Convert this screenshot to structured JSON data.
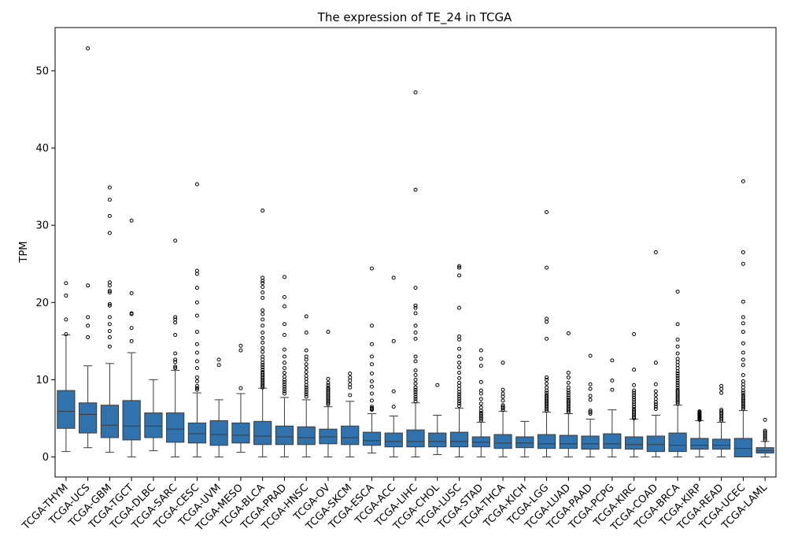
{
  "chart_data": {
    "type": "box",
    "title": "The expression of TE_24 in TCGA",
    "xlabel": "",
    "ylabel": "TPM",
    "ylim": [
      -2.6,
      55.6
    ],
    "yticks": [
      0,
      10,
      20,
      30,
      40,
      50
    ],
    "grid": false,
    "legend": "none",
    "box_color": "#2f72ad",
    "categories": [
      "TCGA-THYM",
      "TCGA-UCS",
      "TCGA-GBM",
      "TCGA-TGCT",
      "TCGA-DLBC",
      "TCGA-SARC",
      "TCGA-CESC",
      "TCGA-UVM",
      "TCGA-MESO",
      "TCGA-BLCA",
      "TCGA-PRAD",
      "TCGA-HNSC",
      "TCGA-OV",
      "TCGA-SKCM",
      "TCGA-ESCA",
      "TCGA-ACC",
      "TCGA-LIHC",
      "TCGA-CHOL",
      "TCGA-LUSC",
      "TCGA-STAD",
      "TCGA-THCA",
      "TCGA-KICH",
      "TCGA-LGG",
      "TCGA-LUAD",
      "TCGA-PAAD",
      "TCGA-PCPG",
      "TCGA-KIRC",
      "TCGA-COAD",
      "TCGA-BRCA",
      "TCGA-KIRP",
      "TCGA-READ",
      "TCGA-UCEC",
      "TCGA-LAML"
    ],
    "boxes": [
      {
        "whislo": 0.7,
        "q1": 3.7,
        "med": 5.9,
        "q3": 8.6,
        "whishi": 15.8,
        "fliers": [
          15.9,
          17.8,
          20.9,
          22.5
        ]
      },
      {
        "whislo": 1.2,
        "q1": 3.1,
        "med": 5.5,
        "q3": 7.0,
        "whishi": 11.8,
        "fliers": [
          15.5,
          17.0,
          18.1,
          22.2,
          52.9
        ]
      },
      {
        "whislo": 0.6,
        "q1": 2.5,
        "med": 4.1,
        "q3": 6.7,
        "whishi": 12.1,
        "fliers": [
          14.3,
          15.5,
          16.3,
          17.2,
          18.1,
          19.6,
          19.8,
          21.3,
          21.5,
          22.2,
          22.6,
          29.0,
          31.2,
          33.3,
          34.9
        ]
      },
      {
        "whislo": 0.0,
        "q1": 2.2,
        "med": 4.0,
        "q3": 7.3,
        "whishi": 13.5,
        "fliers": [
          15.0,
          16.7,
          18.5,
          18.6,
          21.2,
          30.6
        ]
      },
      {
        "whislo": 0.8,
        "q1": 2.5,
        "med": 4.0,
        "q3": 5.7,
        "whishi": 10.0,
        "fliers": []
      },
      {
        "whislo": 0.0,
        "q1": 1.9,
        "med": 3.6,
        "q3": 5.7,
        "whishi": 11.2,
        "fliers": [
          11.5,
          11.7,
          12.3,
          12.6,
          13.4,
          15.8,
          17.4,
          17.8,
          18.1,
          28.0
        ]
      },
      {
        "whislo": 0.0,
        "q1": 1.8,
        "med": 3.0,
        "q3": 4.4,
        "whishi": 8.3,
        "fliers": [
          8.7,
          8.9,
          9.2,
          9.8,
          10.3,
          11.5,
          12.4,
          13.5,
          14.6,
          16.2,
          18.3,
          20.0,
          21.9,
          23.7,
          24.1,
          35.3
        ]
      },
      {
        "whislo": 0.0,
        "q1": 1.5,
        "med": 2.9,
        "q3": 4.7,
        "whishi": 7.4,
        "fliers": [
          11.9,
          12.6
        ]
      },
      {
        "whislo": 0.6,
        "q1": 1.8,
        "med": 2.8,
        "q3": 4.4,
        "whishi": 8.2,
        "fliers": [
          8.9,
          13.8,
          14.4
        ]
      },
      {
        "whislo": 0.0,
        "q1": 1.6,
        "med": 2.7,
        "q3": 4.6,
        "whishi": 8.9,
        "fliers": [
          9.0,
          9.2,
          9.4,
          9.6,
          9.8,
          10.0,
          10.2,
          10.4,
          10.6,
          10.8,
          11.0,
          11.3,
          11.6,
          11.9,
          12.2,
          12.6,
          13.0,
          13.6,
          14.1,
          14.8,
          15.4,
          16.1,
          17.0,
          17.8,
          18.5,
          19.0,
          20.6,
          21.3,
          22.0,
          22.5,
          22.8,
          23.2,
          31.9
        ]
      },
      {
        "whislo": 0.0,
        "q1": 1.6,
        "med": 2.6,
        "q3": 4.0,
        "whishi": 7.7,
        "fliers": [
          8.2,
          8.5,
          8.8,
          9.1,
          9.4,
          9.7,
          10.0,
          10.4,
          10.9,
          11.5,
          12.2,
          13.0,
          13.9,
          15.8,
          17.2,
          19.5,
          20.7,
          23.3
        ]
      },
      {
        "whislo": 0.0,
        "q1": 1.6,
        "med": 2.5,
        "q3": 3.9,
        "whishi": 7.4,
        "fliers": [
          7.8,
          8.1,
          8.4,
          8.7,
          9.0,
          9.3,
          9.7,
          10.1,
          10.5,
          11.0,
          11.5,
          12.0,
          12.6,
          13.0,
          13.8,
          16.1,
          18.2
        ]
      },
      {
        "whislo": 0.0,
        "q1": 1.7,
        "med": 2.6,
        "q3": 3.6,
        "whishi": 6.5,
        "fliers": [
          6.8,
          7.0,
          7.2,
          7.4,
          7.6,
          7.8,
          8.0,
          8.2,
          8.4,
          8.6,
          8.8,
          9.0,
          9.3,
          9.6,
          10.1,
          16.2
        ]
      },
      {
        "whislo": 0.0,
        "q1": 1.6,
        "med": 2.5,
        "q3": 4.0,
        "whishi": 7.2,
        "fliers": [
          8.0,
          9.0,
          9.4,
          9.9,
          10.3,
          10.8
        ]
      },
      {
        "whislo": 0.5,
        "q1": 1.5,
        "med": 2.1,
        "q3": 3.2,
        "whishi": 5.6,
        "fliers": [
          6.1,
          6.2,
          6.3,
          6.5,
          7.3,
          8.2,
          9.1,
          9.8,
          10.8,
          12.0,
          13.0,
          14.6,
          17.0,
          24.4
        ]
      },
      {
        "whislo": 0.0,
        "q1": 1.3,
        "med": 2.0,
        "q3": 3.1,
        "whishi": 5.3,
        "fliers": [
          6.5,
          8.5,
          15.0,
          23.2
        ]
      },
      {
        "whislo": 0.0,
        "q1": 1.3,
        "med": 2.0,
        "q3": 3.5,
        "whishi": 7.0,
        "fliers": [
          7.2,
          7.5,
          7.8,
          8.1,
          8.4,
          8.7,
          9.0,
          9.5,
          10.0,
          10.6,
          11.2,
          12.4,
          13.0,
          15.3,
          16.1,
          17.0,
          18.6,
          19.3,
          19.6,
          21.9,
          34.6,
          47.2
        ]
      },
      {
        "whislo": 0.3,
        "q1": 1.3,
        "med": 2.0,
        "q3": 3.1,
        "whishi": 5.4,
        "fliers": [
          9.3
        ]
      },
      {
        "whislo": 0.0,
        "q1": 1.3,
        "med": 2.0,
        "q3": 3.2,
        "whishi": 6.3,
        "fliers": [
          6.6,
          6.9,
          7.2,
          7.5,
          7.8,
          8.1,
          8.4,
          8.8,
          9.2,
          9.6,
          10.2,
          10.9,
          11.6,
          12.2,
          13.0,
          14.0,
          15.2,
          15.6,
          19.3,
          23.5,
          24.5,
          24.7
        ]
      },
      {
        "whislo": 0.0,
        "q1": 1.3,
        "med": 1.9,
        "q3": 2.6,
        "whishi": 4.5,
        "fliers": [
          4.7,
          4.9,
          5.1,
          5.3,
          5.5,
          5.7,
          6.0,
          6.4,
          6.9,
          7.5,
          8.2,
          8.6,
          9.7,
          11.8,
          12.7,
          13.8
        ]
      },
      {
        "whislo": 0.0,
        "q1": 1.1,
        "med": 1.8,
        "q3": 2.9,
        "whishi": 5.9,
        "fliers": [
          6.1,
          6.3,
          6.5,
          6.7,
          7.3,
          7.8,
          8.2,
          8.7,
          12.2
        ]
      },
      {
        "whislo": 0.0,
        "q1": 1.2,
        "med": 1.8,
        "q3": 2.6,
        "whishi": 4.6,
        "fliers": []
      },
      {
        "whislo": 0.0,
        "q1": 1.1,
        "med": 1.7,
        "q3": 2.9,
        "whishi": 5.8,
        "fliers": [
          6.0,
          6.2,
          6.4,
          6.6,
          6.8,
          7.0,
          7.2,
          7.4,
          7.6,
          7.8,
          8.0,
          8.3,
          8.6,
          9.0,
          9.5,
          10.0,
          10.3,
          15.3,
          17.5,
          17.9,
          24.5,
          31.7
        ]
      },
      {
        "whislo": 0.0,
        "q1": 1.1,
        "med": 1.7,
        "q3": 2.8,
        "whishi": 5.6,
        "fliers": [
          5.8,
          6.0,
          6.2,
          6.4,
          6.6,
          6.8,
          7.0,
          7.2,
          7.4,
          7.7,
          8.0,
          8.3,
          8.6,
          9.0,
          9.6,
          10.3,
          10.9,
          16.0
        ]
      },
      {
        "whislo": 0.0,
        "q1": 1.0,
        "med": 1.7,
        "q3": 2.7,
        "whishi": 4.9,
        "fliers": [
          5.6,
          5.8,
          6.0,
          7.4,
          7.9,
          8.8,
          9.4,
          13.1
        ]
      },
      {
        "whislo": 0.0,
        "q1": 1.1,
        "med": 1.7,
        "q3": 3.0,
        "whishi": 6.1,
        "fliers": [
          8.7,
          9.9,
          12.5
        ]
      },
      {
        "whislo": 0.0,
        "q1": 1.0,
        "med": 1.6,
        "q3": 2.6,
        "whishi": 4.9,
        "fliers": [
          5.0,
          5.2,
          5.4,
          5.6,
          5.8,
          6.0,
          6.2,
          6.5,
          6.8,
          7.1,
          7.4,
          7.7,
          8.0,
          8.3,
          8.6,
          9.3,
          11.3,
          15.9
        ]
      },
      {
        "whislo": 0.0,
        "q1": 0.7,
        "med": 1.6,
        "q3": 2.7,
        "whishi": 5.4,
        "fliers": [
          6.2,
          6.5,
          6.8,
          7.1,
          7.5,
          8.0,
          8.5,
          9.4,
          12.2,
          26.5
        ]
      },
      {
        "whislo": 0.0,
        "q1": 0.7,
        "med": 1.5,
        "q3": 3.1,
        "whishi": 6.7,
        "fliers": [
          6.9,
          7.1,
          7.3,
          7.5,
          7.7,
          7.9,
          8.1,
          8.3,
          8.5,
          8.7,
          9.0,
          9.3,
          9.6,
          9.9,
          10.2,
          10.5,
          10.8,
          11.1,
          11.5,
          11.9,
          12.3,
          12.7,
          13.4,
          14.3,
          15.2,
          17.2,
          21.4
        ]
      },
      {
        "whislo": 0.0,
        "q1": 1.0,
        "med": 1.5,
        "q3": 2.4,
        "whishi": 4.7,
        "fliers": [
          4.8,
          4.9,
          5.0,
          5.1,
          5.2,
          5.3,
          5.4,
          5.5,
          5.6,
          5.7,
          5.8,
          5.9
        ]
      },
      {
        "whislo": 0.0,
        "q1": 1.0,
        "med": 1.5,
        "q3": 2.3,
        "whishi": 4.5,
        "fliers": [
          4.7,
          4.9,
          5.1,
          5.3,
          5.5,
          5.7,
          5.9,
          6.1,
          8.3,
          8.8,
          9.2
        ]
      },
      {
        "whislo": 0.0,
        "q1": 0.0,
        "med": 1.1,
        "q3": 2.4,
        "whishi": 6.0,
        "fliers": [
          6.2,
          6.4,
          6.6,
          6.8,
          7.0,
          7.2,
          7.4,
          7.6,
          7.8,
          8.0,
          8.3,
          8.6,
          9.0,
          9.4,
          9.8,
          10.6,
          11.9,
          12.6,
          13.5,
          14.7,
          16.2,
          17.3,
          18.1,
          20.1,
          25.0,
          26.5,
          35.7
        ]
      },
      {
        "whislo": 0.0,
        "q1": 0.5,
        "med": 0.8,
        "q3": 1.2,
        "whishi": 2.0,
        "fliers": [
          2.2,
          2.4,
          2.6,
          2.8,
          3.0,
          3.2,
          3.4,
          4.8
        ]
      }
    ]
  }
}
